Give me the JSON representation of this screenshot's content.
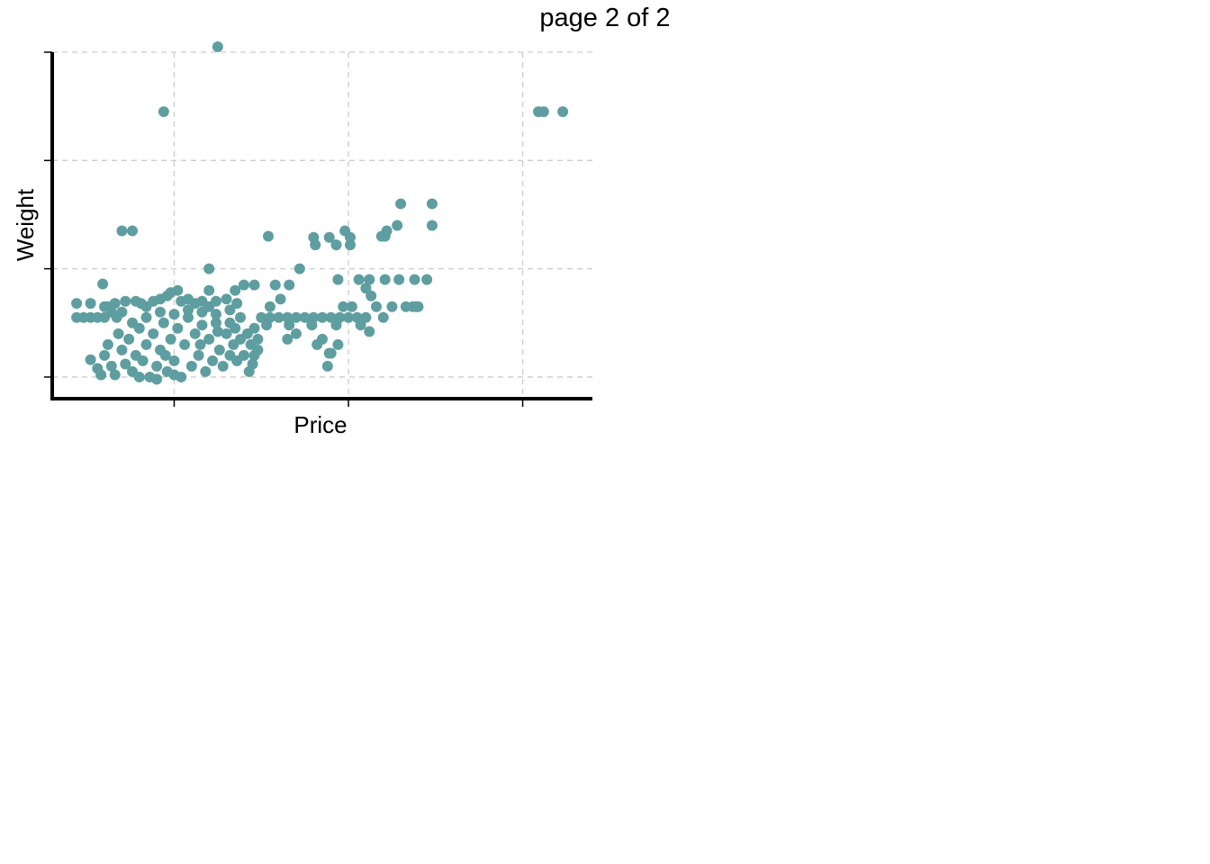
{
  "page": {
    "title": "page 2 of 2"
  },
  "chart_data": {
    "type": "scatter",
    "xlabel": "Price",
    "ylabel": "Weight",
    "grid": true,
    "xlim": [
      0,
      31
    ],
    "ylim": [
      -0.2,
      3.0
    ],
    "x_gridlines": [
      7,
      17,
      27
    ],
    "y_gridlines": [
      0,
      1,
      2,
      3
    ],
    "point_color": "#5f9ea0",
    "series": [
      {
        "points": [
          [
            9.5,
            3.05
          ],
          [
            6.4,
            2.45
          ],
          [
            27.9,
            2.45
          ],
          [
            28.2,
            2.45
          ],
          [
            29.3,
            2.45
          ],
          [
            4.0,
            1.35
          ],
          [
            4.6,
            1.35
          ],
          [
            20.0,
            1.6
          ],
          [
            21.8,
            1.6
          ],
          [
            19.8,
            1.4
          ],
          [
            21.8,
            1.4
          ],
          [
            12.4,
            1.3
          ],
          [
            14.2,
            1.0
          ],
          [
            11.6,
            0.85
          ],
          [
            12.8,
            0.85
          ],
          [
            13.6,
            0.85
          ],
          [
            15.0,
            1.29
          ],
          [
            15.1,
            1.22
          ],
          [
            15.9,
            1.29
          ],
          [
            16.3,
            1.22
          ],
          [
            16.8,
            1.35
          ],
          [
            17.1,
            1.29
          ],
          [
            17.1,
            1.22
          ],
          [
            18.9,
            1.3
          ],
          [
            19.1,
            1.3
          ],
          [
            19.2,
            1.35
          ],
          [
            9.0,
            1.0
          ],
          [
            16.4,
            0.9
          ],
          [
            17.6,
            0.9
          ],
          [
            18.2,
            0.9
          ],
          [
            19.1,
            0.9
          ],
          [
            19.9,
            0.9
          ],
          [
            20.8,
            0.9
          ],
          [
            21.5,
            0.9
          ],
          [
            18.0,
            0.82
          ],
          [
            13.1,
            0.72
          ],
          [
            18.3,
            0.75
          ],
          [
            18.6,
            0.65
          ],
          [
            21.0,
            0.65
          ],
          [
            20.3,
            0.65
          ],
          [
            20.7,
            0.65
          ],
          [
            20.9,
            0.65
          ],
          [
            19.5,
            0.65
          ],
          [
            17.2,
            0.65
          ],
          [
            16.7,
            0.65
          ],
          [
            12.5,
            0.65
          ],
          [
            12.0,
            0.55
          ],
          [
            12.5,
            0.55
          ],
          [
            13.0,
            0.55
          ],
          [
            13.5,
            0.55
          ],
          [
            14.0,
            0.55
          ],
          [
            14.5,
            0.55
          ],
          [
            15.0,
            0.55
          ],
          [
            15.5,
            0.55
          ],
          [
            16.0,
            0.55
          ],
          [
            16.5,
            0.55
          ],
          [
            17.0,
            0.55
          ],
          [
            17.5,
            0.55
          ],
          [
            18.0,
            0.55
          ],
          [
            19.0,
            0.55
          ],
          [
            12.3,
            0.48
          ],
          [
            13.6,
            0.48
          ],
          [
            14.9,
            0.48
          ],
          [
            16.3,
            0.48
          ],
          [
            17.7,
            0.48
          ],
          [
            18.2,
            0.42
          ],
          [
            14.0,
            0.4
          ],
          [
            13.5,
            0.35
          ],
          [
            15.5,
            0.35
          ],
          [
            15.2,
            0.3
          ],
          [
            16.4,
            0.3
          ],
          [
            15.9,
            0.22
          ],
          [
            16.0,
            0.22
          ],
          [
            15.8,
            0.1
          ],
          [
            11.8,
            0.25
          ],
          [
            11.6,
            0.2
          ],
          [
            11.5,
            0.12
          ],
          [
            11.3,
            0.05
          ],
          [
            1.4,
            0.68
          ],
          [
            2.2,
            0.68
          ],
          [
            1.4,
            0.55
          ],
          [
            1.8,
            0.55
          ],
          [
            2.2,
            0.55
          ],
          [
            2.6,
            0.55
          ],
          [
            3.0,
            0.55
          ],
          [
            2.9,
            0.86
          ],
          [
            3.0,
            0.65
          ],
          [
            3.2,
            0.65
          ],
          [
            3.4,
            0.6
          ],
          [
            3.6,
            0.68
          ],
          [
            3.7,
            0.55
          ],
          [
            4.0,
            0.6
          ],
          [
            4.2,
            0.7
          ],
          [
            4.8,
            0.7
          ],
          [
            5.1,
            0.68
          ],
          [
            5.4,
            0.65
          ],
          [
            5.8,
            0.7
          ],
          [
            6.2,
            0.72
          ],
          [
            6.6,
            0.75
          ],
          [
            6.8,
            0.78
          ],
          [
            7.2,
            0.8
          ],
          [
            7.4,
            0.7
          ],
          [
            7.8,
            0.72
          ],
          [
            8.2,
            0.68
          ],
          [
            8.6,
            0.7
          ],
          [
            9.0,
            0.65
          ],
          [
            9.4,
            0.7
          ],
          [
            9.0,
            0.8
          ],
          [
            10.0,
            0.72
          ],
          [
            10.5,
            0.8
          ],
          [
            11.0,
            0.85
          ],
          [
            10.6,
            0.68
          ],
          [
            10.8,
            0.55
          ],
          [
            10.2,
            0.5
          ],
          [
            2.2,
            0.16
          ],
          [
            2.6,
            0.08
          ],
          [
            2.8,
            0.02
          ],
          [
            3.0,
            0.2
          ],
          [
            3.2,
            0.3
          ],
          [
            3.4,
            0.1
          ],
          [
            3.6,
            0.02
          ],
          [
            4.0,
            0.25
          ],
          [
            4.2,
            0.12
          ],
          [
            4.4,
            0.35
          ],
          [
            4.6,
            0.05
          ],
          [
            4.8,
            0.2
          ],
          [
            5.0,
            0.45
          ],
          [
            5.2,
            0.15
          ],
          [
            5.4,
            0.3
          ],
          [
            5.6,
            0.0
          ],
          [
            5.8,
            0.4
          ],
          [
            6.0,
            0.1
          ],
          [
            6.2,
            0.25
          ],
          [
            6.4,
            0.5
          ],
          [
            6.6,
            0.05
          ],
          [
            6.8,
            0.35
          ],
          [
            7.0,
            0.15
          ],
          [
            7.2,
            0.45
          ],
          [
            7.4,
            0.0
          ],
          [
            7.6,
            0.3
          ],
          [
            7.8,
            0.55
          ],
          [
            8.0,
            0.1
          ],
          [
            8.2,
            0.4
          ],
          [
            8.4,
            0.2
          ],
          [
            8.6,
            0.6
          ],
          [
            8.8,
            0.05
          ],
          [
            9.0,
            0.35
          ],
          [
            9.2,
            0.15
          ],
          [
            9.4,
            0.5
          ],
          [
            9.6,
            0.25
          ],
          [
            9.8,
            0.1
          ],
          [
            10.0,
            0.4
          ],
          [
            10.2,
            0.2
          ],
          [
            10.4,
            0.3
          ],
          [
            10.6,
            0.15
          ],
          [
            10.8,
            0.35
          ],
          [
            11.0,
            0.2
          ],
          [
            11.2,
            0.4
          ],
          [
            11.4,
            0.3
          ],
          [
            11.6,
            0.45
          ],
          [
            11.8,
            0.35
          ],
          [
            3.8,
            0.4
          ],
          [
            4.6,
            0.5
          ],
          [
            5.4,
            0.55
          ],
          [
            6.2,
            0.6
          ],
          [
            7.0,
            0.58
          ],
          [
            7.8,
            0.62
          ],
          [
            8.6,
            0.48
          ],
          [
            9.4,
            0.58
          ],
          [
            10.2,
            0.62
          ],
          [
            5.0,
            0.0
          ],
          [
            6.0,
            -0.02
          ],
          [
            7.0,
            0.02
          ],
          [
            6.5,
            0.2
          ],
          [
            8.5,
            0.3
          ],
          [
            9.5,
            0.42
          ],
          [
            10.5,
            0.45
          ]
        ]
      }
    ]
  }
}
